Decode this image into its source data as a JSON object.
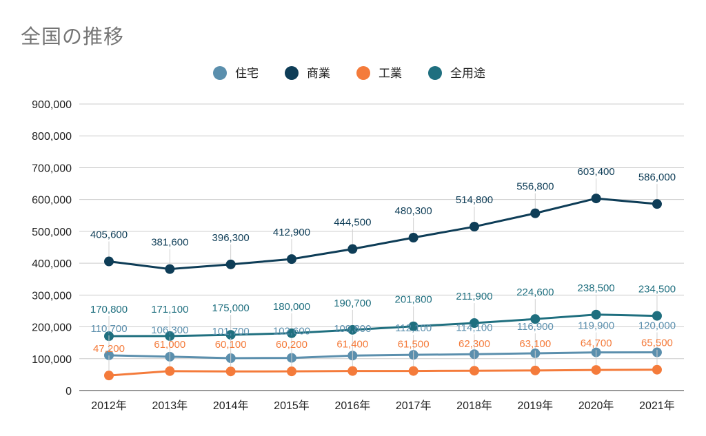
{
  "chart_data": {
    "type": "line",
    "title": "全国の推移",
    "categories": [
      "2012年",
      "2013年",
      "2014年",
      "2015年",
      "2016年",
      "2017年",
      "2018年",
      "2019年",
      "2020年",
      "2021年"
    ],
    "ylim": [
      0,
      900000
    ],
    "yticks": [
      0,
      100000,
      200000,
      300000,
      400000,
      500000,
      600000,
      700000,
      800000,
      900000
    ],
    "ytick_labels": [
      "0",
      "100,000",
      "200,000",
      "300,000",
      "400,000",
      "500,000",
      "600,000",
      "700,000",
      "800,000",
      "900,000"
    ],
    "grid": true,
    "legend_position": "top-center",
    "series": [
      {
        "name": "住宅",
        "color": "#5b8fad",
        "values": [
          110700,
          106300,
          101700,
          102600,
          109800,
          112100,
          114100,
          116900,
          119900,
          120000
        ],
        "labels": [
          "110,700",
          "106,300",
          "101,700",
          "102,600",
          "109,800",
          "112,100",
          "114,100",
          "116,900",
          "119,900",
          "120,000"
        ]
      },
      {
        "name": "商業",
        "color": "#0e3d57",
        "values": [
          405600,
          381600,
          396300,
          412900,
          444500,
          480300,
          514800,
          556800,
          603400,
          586000
        ],
        "labels": [
          "405,600",
          "381,600",
          "396,300",
          "412,900",
          "444,500",
          "480,300",
          "514,800",
          "556,800",
          "603,400",
          "586,000"
        ]
      },
      {
        "name": "工業",
        "color": "#f47b3b",
        "values": [
          47200,
          61000,
          60100,
          60200,
          61400,
          61500,
          62300,
          63100,
          64700,
          65500
        ],
        "labels": [
          "47,200",
          "61,000",
          "60,100",
          "60,200",
          "61,400",
          "61,500",
          "62,300",
          "63,100",
          "64,700",
          "65,500"
        ]
      },
      {
        "name": "全用途",
        "color": "#1f6f7f",
        "values": [
          170800,
          171100,
          175000,
          180000,
          190700,
          201800,
          211900,
          224600,
          238500,
          234500
        ],
        "labels": [
          "170,800",
          "171,100",
          "175,000",
          "180,000",
          "190,700",
          "201,800",
          "211,900",
          "224,600",
          "238,500",
          "234,500"
        ]
      }
    ]
  }
}
